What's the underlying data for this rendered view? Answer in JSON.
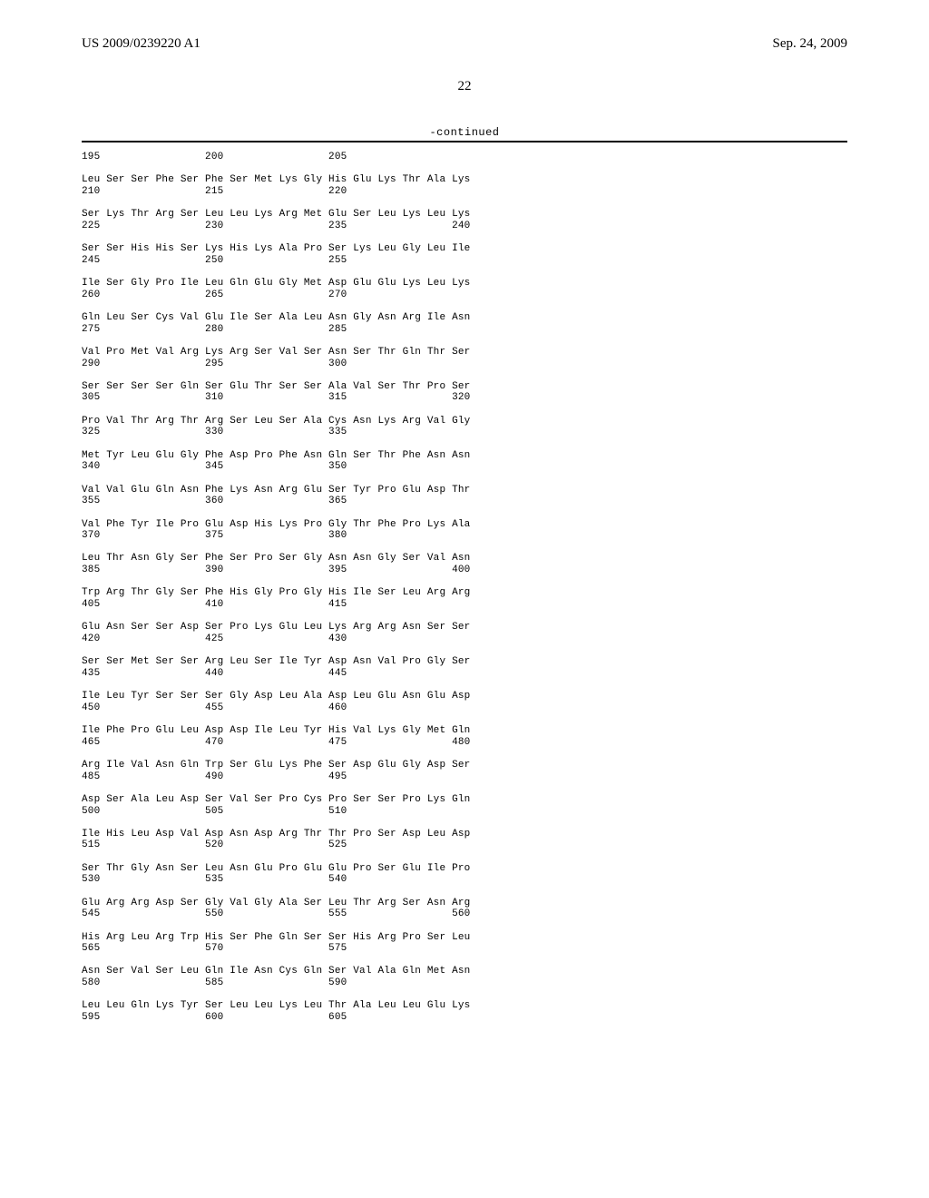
{
  "header": {
    "left": "US 2009/0239220 A1",
    "right": "Sep. 24, 2009"
  },
  "page_number": "22",
  "continued_label": "-continued",
  "sequence_text": "195                 200                 205\n\nLeu Ser Ser Phe Ser Phe Ser Met Lys Gly His Glu Lys Thr Ala Lys\n210                 215                 220\n\nSer Lys Thr Arg Ser Leu Leu Lys Arg Met Glu Ser Leu Lys Leu Lys\n225                 230                 235                 240\n\nSer Ser His His Ser Lys His Lys Ala Pro Ser Lys Leu Gly Leu Ile\n245                 250                 255\n\nIle Ser Gly Pro Ile Leu Gln Glu Gly Met Asp Glu Glu Lys Leu Lys\n260                 265                 270\n\nGln Leu Ser Cys Val Glu Ile Ser Ala Leu Asn Gly Asn Arg Ile Asn\n275                 280                 285\n\nVal Pro Met Val Arg Lys Arg Ser Val Ser Asn Ser Thr Gln Thr Ser\n290                 295                 300\n\nSer Ser Ser Ser Gln Ser Glu Thr Ser Ser Ala Val Ser Thr Pro Ser\n305                 310                 315                 320\n\nPro Val Thr Arg Thr Arg Ser Leu Ser Ala Cys Asn Lys Arg Val Gly\n325                 330                 335\n\nMet Tyr Leu Glu Gly Phe Asp Pro Phe Asn Gln Ser Thr Phe Asn Asn\n340                 345                 350\n\nVal Val Glu Gln Asn Phe Lys Asn Arg Glu Ser Tyr Pro Glu Asp Thr\n355                 360                 365\n\nVal Phe Tyr Ile Pro Glu Asp His Lys Pro Gly Thr Phe Pro Lys Ala\n370                 375                 380\n\nLeu Thr Asn Gly Ser Phe Ser Pro Ser Gly Asn Asn Gly Ser Val Asn\n385                 390                 395                 400\n\nTrp Arg Thr Gly Ser Phe His Gly Pro Gly His Ile Ser Leu Arg Arg\n405                 410                 415\n\nGlu Asn Ser Ser Asp Ser Pro Lys Glu Leu Lys Arg Arg Asn Ser Ser\n420                 425                 430\n\nSer Ser Met Ser Ser Arg Leu Ser Ile Tyr Asp Asn Val Pro Gly Ser\n435                 440                 445\n\nIle Leu Tyr Ser Ser Ser Gly Asp Leu Ala Asp Leu Glu Asn Glu Asp\n450                 455                 460\n\nIle Phe Pro Glu Leu Asp Asp Ile Leu Tyr His Val Lys Gly Met Gln\n465                 470                 475                 480\n\nArg Ile Val Asn Gln Trp Ser Glu Lys Phe Ser Asp Glu Gly Asp Ser\n485                 490                 495\n\nAsp Ser Ala Leu Asp Ser Val Ser Pro Cys Pro Ser Ser Pro Lys Gln\n500                 505                 510\n\nIle His Leu Asp Val Asp Asn Asp Arg Thr Thr Pro Ser Asp Leu Asp\n515                 520                 525\n\nSer Thr Gly Asn Ser Leu Asn Glu Pro Glu Glu Pro Ser Glu Ile Pro\n530                 535                 540\n\nGlu Arg Arg Asp Ser Gly Val Gly Ala Ser Leu Thr Arg Ser Asn Arg\n545                 550                 555                 560\n\nHis Arg Leu Arg Trp His Ser Phe Gln Ser Ser His Arg Pro Ser Leu\n565                 570                 575\n\nAsn Ser Val Ser Leu Gln Ile Asn Cys Gln Ser Val Ala Gln Met Asn\n580                 585                 590\n\nLeu Leu Gln Lys Tyr Ser Leu Leu Lys Leu Thr Ala Leu Leu Glu Lys\n595                 600                 605"
}
